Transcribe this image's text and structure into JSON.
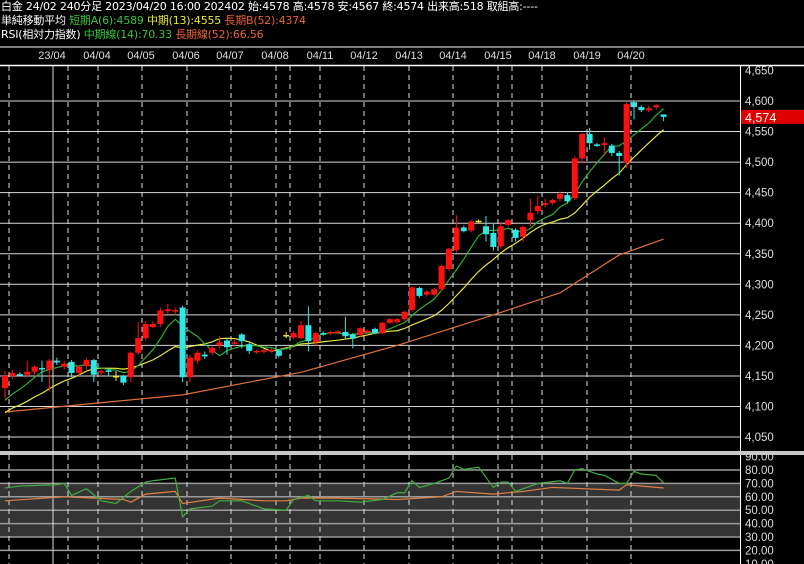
{
  "header": {
    "line1": "白金 24/02 240分足 2023/04/20 16:00 202402 始:4578 高:4578 安:4567 終:4574 出来高:518 取組高:----",
    "ma_title": "単純移動平均",
    "ma_short": "短期A(6):4589",
    "ma_mid": "中期(13):4555",
    "ma_long": "長期B(52):4374",
    "rsi_title": "RSI(相対力指数)",
    "rsi_mid": "中期線(14):70.33",
    "rsi_long": "長期線(52):66.56"
  },
  "colors": {
    "up": "#ff1010",
    "down": "#33e6e6",
    "ma_short": "#2fae2f",
    "ma_mid": "#e6e640",
    "ma_long": "#e0703a",
    "rsi_mid": "#3fae3f",
    "rsi_long": "#e08040",
    "last_price_bg": "#e00000"
  },
  "chart_data": [
    {
      "type": "candlestick",
      "date_labels": [
        "23/04",
        "04/04",
        "04/05",
        "04/06",
        "04/07",
        "04/08",
        "04/11",
        "04/12",
        "04/13",
        "04/14",
        "04/15",
        "04/18",
        "04/19",
        "04/20"
      ],
      "y_ticks": [
        "4,650",
        "4,600",
        "4,550",
        "4,500",
        "4,450",
        "4,400",
        "4,350",
        "4,300",
        "4,250",
        "4,200",
        "4,150",
        "4,100",
        "4,050"
      ],
      "ylim": [
        4030,
        4660
      ],
      "grid": true,
      "last_price": "4,574",
      "ohlc": [
        [
          4130,
          4158,
          4112,
          4150
        ],
        [
          4150,
          4160,
          4145,
          4155
        ],
        [
          4153,
          4156,
          4150,
          4152
        ],
        [
          4152,
          4175,
          4148,
          4157
        ],
        [
          4157,
          4168,
          4150,
          4165
        ],
        [
          4163,
          4175,
          4140,
          4161
        ],
        [
          4160,
          4178,
          4125,
          4175
        ],
        [
          4175,
          4180,
          4168,
          4172
        ],
        [
          4165,
          4174,
          4160,
          4170
        ],
        [
          4173,
          4176,
          4148,
          4155
        ],
        [
          4155,
          4168,
          4150,
          4165
        ],
        [
          4166,
          4180,
          4160,
          4176
        ],
        [
          4176,
          4178,
          4140,
          4152
        ],
        [
          4156,
          4162,
          4150,
          4158
        ],
        [
          4159,
          4163,
          4150,
          4157
        ],
        [
          4150,
          4158,
          4142,
          4150
        ],
        [
          4150,
          4152,
          4135,
          4139
        ],
        [
          4148,
          4190,
          4140,
          4188
        ],
        [
          4188,
          4238,
          4185,
          4212
        ],
        [
          4212,
          4240,
          4208,
          4235
        ],
        [
          4230,
          4240,
          4228,
          4235
        ],
        [
          4235,
          4262,
          4230,
          4257
        ],
        [
          4256,
          4268,
          4250,
          4259
        ],
        [
          4256,
          4262,
          4250,
          4258
        ],
        [
          4262,
          4265,
          4140,
          4148
        ],
        [
          4148,
          4185,
          4140,
          4180
        ],
        [
          4175,
          4192,
          4170,
          4188
        ],
        [
          4185,
          4190,
          4178,
          4182
        ],
        [
          4188,
          4200,
          4184,
          4196
        ],
        [
          4200,
          4215,
          4195,
          4205
        ],
        [
          4208,
          4212,
          4185,
          4197
        ],
        [
          4203,
          4210,
          4198,
          4205
        ],
        [
          4218,
          4220,
          4195,
          4207
        ],
        [
          4202,
          4204,
          4186,
          4191
        ],
        [
          4189,
          4193,
          4186,
          4191
        ],
        [
          4190,
          4194,
          4187,
          4192
        ],
        [
          4191,
          4195,
          4188,
          4193
        ],
        [
          4192,
          4194,
          4180,
          4183
        ],
        [
          4217,
          4222,
          4212,
          4217
        ],
        [
          4213,
          4223,
          4210,
          4220
        ],
        [
          4212,
          4240,
          4210,
          4233
        ],
        [
          4233,
          4264,
          4190,
          4207
        ],
        [
          4205,
          4222,
          4200,
          4220
        ],
        [
          4220,
          4223,
          4216,
          4219
        ],
        [
          4220,
          4224,
          4217,
          4222
        ],
        [
          4221,
          4225,
          4218,
          4223
        ],
        [
          4222,
          4247,
          4210,
          4215
        ],
        [
          4218,
          4220,
          4195,
          4211
        ],
        [
          4217,
          4230,
          4214,
          4228
        ],
        [
          4221,
          4226,
          4218,
          4224
        ],
        [
          4227,
          4229,
          4218,
          4220
        ],
        [
          4220,
          4239,
          4218,
          4237
        ],
        [
          4237,
          4245,
          4235,
          4243
        ],
        [
          4238,
          4245,
          4236,
          4243
        ],
        [
          4243,
          4257,
          4240,
          4255
        ],
        [
          4258,
          4297,
          4255,
          4295
        ],
        [
          4294,
          4296,
          4278,
          4281
        ],
        [
          4283,
          4290,
          4280,
          4288
        ],
        [
          4283,
          4294,
          4280,
          4292
        ],
        [
          4292,
          4332,
          4290,
          4330
        ],
        [
          4325,
          4360,
          4322,
          4358
        ],
        [
          4356,
          4413,
          4352,
          4393
        ],
        [
          4393,
          4396,
          4385,
          4387
        ],
        [
          4388,
          4405,
          4385,
          4403
        ],
        [
          4404,
          4406,
          4400,
          4404
        ],
        [
          4395,
          4412,
          4370,
          4382
        ],
        [
          4384,
          4400,
          4355,
          4361
        ],
        [
          4362,
          4402,
          4358,
          4395
        ],
        [
          4397,
          4407,
          4394,
          4405
        ],
        [
          4389,
          4392,
          4370,
          4376
        ],
        [
          4378,
          4396,
          4370,
          4394
        ],
        [
          4405,
          4440,
          4395,
          4417
        ],
        [
          4420,
          4445,
          4415,
          4428
        ],
        [
          4430,
          4440,
          4426,
          4433
        ],
        [
          4433,
          4440,
          4430,
          4438
        ],
        [
          4440,
          4452,
          4436,
          4448
        ],
        [
          4446,
          4450,
          4432,
          4436
        ],
        [
          4441,
          4510,
          4438,
          4506
        ],
        [
          4506,
          4548,
          4498,
          4546
        ],
        [
          4546,
          4556,
          4520,
          4531
        ],
        [
          4529,
          4531,
          4525,
          4527
        ],
        [
          4528,
          4540,
          4510,
          4531
        ],
        [
          4527,
          4530,
          4510,
          4515
        ],
        [
          4515,
          4518,
          4478,
          4510
        ],
        [
          4499,
          4597,
          4490,
          4595
        ],
        [
          4598,
          4600,
          4570,
          4590
        ],
        [
          4590,
          4593,
          4582,
          4585
        ],
        [
          4585,
          4592,
          4582,
          4588
        ],
        [
          4590,
          4595,
          4586,
          4593
        ],
        [
          4578,
          4578,
          4567,
          4574
        ]
      ],
      "ma_long_52": [
        [
          0,
          4091
        ],
        [
          24,
          4119
        ],
        [
          40,
          4156
        ],
        [
          53,
          4200
        ],
        [
          64,
          4242
        ],
        [
          75,
          4286
        ],
        [
          83,
          4348
        ],
        [
          89,
          4374
        ]
      ]
    },
    {
      "type": "line",
      "y_ticks": [
        "90.00",
        "80.00",
        "70.00",
        "60.00",
        "50.00",
        "40.00",
        "30.00",
        "20.00",
        "10.00"
      ],
      "ylim": [
        10,
        90
      ],
      "band": [
        30,
        70
      ],
      "series": [
        {
          "name": "中期線(14)",
          "points": [
            [
              0,
              66.5
            ],
            [
              2,
              68
            ],
            [
              7,
              69
            ],
            [
              8,
              70
            ],
            [
              9,
              61
            ],
            [
              11,
              66
            ],
            [
              13,
              57
            ],
            [
              15,
              55
            ],
            [
              17,
              64
            ],
            [
              19,
              71
            ],
            [
              20,
              72
            ],
            [
              23,
              74
            ],
            [
              24,
              45
            ],
            [
              25,
              51
            ],
            [
              28,
              53
            ],
            [
              29,
              57
            ],
            [
              32,
              57
            ],
            [
              35,
              51
            ],
            [
              38,
              50
            ],
            [
              39,
              58
            ],
            [
              41,
              61
            ],
            [
              42,
              57
            ],
            [
              45,
              57
            ],
            [
              48,
              56
            ],
            [
              51,
              58
            ],
            [
              53,
              63
            ],
            [
              54,
              63
            ],
            [
              55,
              72
            ],
            [
              56,
              67
            ],
            [
              58,
              70
            ],
            [
              60,
              74
            ],
            [
              61,
              83
            ],
            [
              62,
              80.5
            ],
            [
              64,
              82
            ],
            [
              66,
              67
            ],
            [
              67,
              71
            ],
            [
              68,
              71
            ],
            [
              69,
              64
            ],
            [
              72,
              70
            ],
            [
              75,
              72
            ],
            [
              76,
              70
            ],
            [
              77,
              80
            ],
            [
              78,
              81
            ],
            [
              80,
              77
            ],
            [
              81,
              76
            ],
            [
              83,
              70
            ],
            [
              84,
              70
            ],
            [
              85,
              79
            ],
            [
              86,
              77
            ],
            [
              88,
              76
            ],
            [
              89,
              70.33
            ]
          ]
        },
        {
          "name": "長期線(52)",
          "points": [
            [
              0,
              57
            ],
            [
              8,
              60
            ],
            [
              16,
              58
            ],
            [
              17,
              56
            ],
            [
              19,
              62
            ],
            [
              23,
              64
            ],
            [
              24,
              55
            ],
            [
              29,
              59
            ],
            [
              35,
              57
            ],
            [
              38,
              57
            ],
            [
              40,
              59
            ],
            [
              45,
              59
            ],
            [
              53,
              58
            ],
            [
              59,
              60
            ],
            [
              61,
              64
            ],
            [
              66,
              62
            ],
            [
              70,
              64
            ],
            [
              74,
              67
            ],
            [
              83,
              65
            ],
            [
              84,
              69
            ],
            [
              89,
              66.56
            ]
          ]
        }
      ]
    }
  ]
}
